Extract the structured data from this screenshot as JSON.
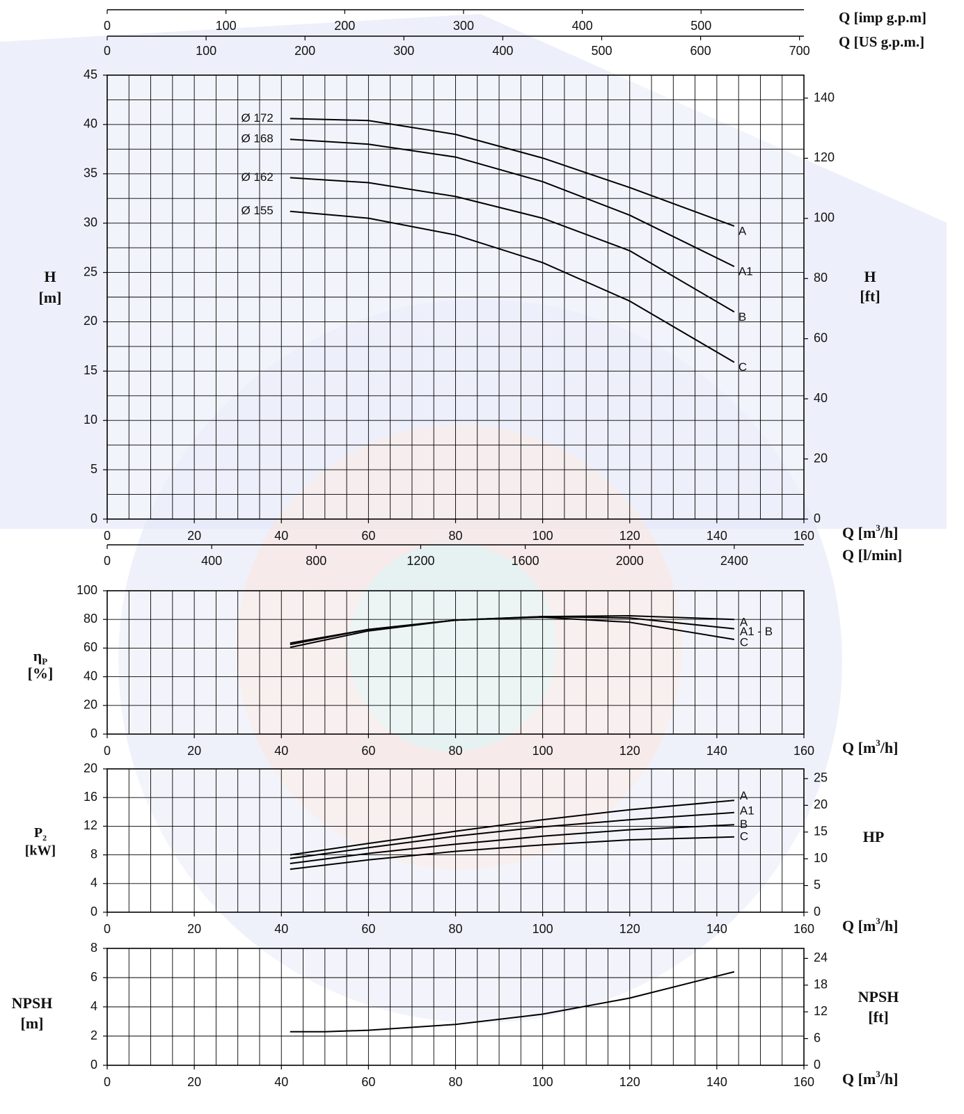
{
  "chart_data": [
    {
      "type": "line",
      "name": "head-chart",
      "top_axes": {
        "imp_label": "Q [imp g.p.m]",
        "imp_ticks": [
          "0",
          "100",
          "200",
          "300",
          "400",
          "500"
        ],
        "us_label": "Q [US g.p.m.]",
        "us_ticks": [
          "0",
          "100",
          "200",
          "300",
          "400",
          "500",
          "600",
          "700"
        ]
      },
      "x": {
        "label": "Q [m³/h]",
        "lim": [
          0,
          160
        ],
        "ticks": [
          "0",
          "20",
          "40",
          "60",
          "80",
          "100",
          "120",
          "140",
          "160"
        ]
      },
      "x2": {
        "label": "Q [l/min]",
        "ticks": [
          "0",
          "400",
          "800",
          "1200",
          "1600",
          "2000",
          "2400"
        ]
      },
      "y": {
        "label_line1": "H",
        "label_line2": "[m]",
        "lim": [
          0,
          45
        ],
        "ticks": [
          "0",
          "5",
          "10",
          "15",
          "20",
          "25",
          "30",
          "35",
          "40",
          "45"
        ]
      },
      "y2": {
        "label_line1": "H",
        "label_line2": "[ft]",
        "ticks": [
          "0",
          "20",
          "40",
          "60",
          "80",
          "100",
          "120",
          "140"
        ]
      },
      "grid": true,
      "series": [
        {
          "name": "A",
          "diameter_label": "Ø 172",
          "x": [
            42,
            60,
            80,
            100,
            120,
            144
          ],
          "y": [
            40.6,
            40.4,
            39.0,
            36.6,
            33.6,
            29.7
          ]
        },
        {
          "name": "A1",
          "diameter_label": "Ø 168",
          "x": [
            42,
            60,
            80,
            100,
            120,
            144
          ],
          "y": [
            38.5,
            38.0,
            36.7,
            34.2,
            30.8,
            25.6
          ]
        },
        {
          "name": "B",
          "diameter_label": "Ø 162",
          "x": [
            42,
            60,
            80,
            100,
            120,
            144
          ],
          "y": [
            34.6,
            34.1,
            32.7,
            30.5,
            27.2,
            21.0
          ]
        },
        {
          "name": "C",
          "diameter_label": "Ø 155",
          "x": [
            42,
            60,
            80,
            100,
            120,
            144
          ],
          "y": [
            31.2,
            30.5,
            28.8,
            26.0,
            22.1,
            15.9
          ]
        }
      ]
    },
    {
      "type": "line",
      "name": "efficiency-chart",
      "x": {
        "label": "Q [m³/h]",
        "lim": [
          0,
          160
        ],
        "ticks": [
          "0",
          "20",
          "40",
          "60",
          "80",
          "100",
          "120",
          "140",
          "160"
        ]
      },
      "y": {
        "label_symbol": "η",
        "label_sub": "P",
        "label_line2": "[%]",
        "lim": [
          0,
          100
        ],
        "ticks": [
          "0",
          "20",
          "40",
          "60",
          "80",
          "100"
        ]
      },
      "grid": true,
      "series": [
        {
          "name": "A",
          "x": [
            42,
            60,
            80,
            100,
            120,
            144
          ],
          "y": [
            63.5,
            73,
            79.5,
            82,
            82.5,
            80
          ]
        },
        {
          "name": "A1 - B",
          "x": [
            42,
            60,
            80,
            100,
            120,
            144
          ],
          "y": [
            62.5,
            73,
            79.5,
            82,
            81,
            73.5
          ]
        },
        {
          "name": "C",
          "x": [
            42,
            60,
            80,
            100,
            120,
            144
          ],
          "y": [
            60.5,
            72,
            79.5,
            81.5,
            78,
            66
          ]
        }
      ]
    },
    {
      "type": "line",
      "name": "power-chart",
      "x": {
        "label": "Q [m³/h]",
        "lim": [
          0,
          160
        ],
        "ticks": [
          "0",
          "20",
          "40",
          "60",
          "80",
          "100",
          "120",
          "140",
          "160"
        ]
      },
      "y": {
        "label_symbol": "P",
        "label_sub": "2",
        "label_line2": "[kW]",
        "lim": [
          0,
          20
        ],
        "ticks": [
          "0",
          "4",
          "8",
          "12",
          "16",
          "20"
        ]
      },
      "y2": {
        "label": "HP",
        "ticks": [
          "0",
          "5",
          "10",
          "15",
          "20",
          "25"
        ]
      },
      "grid": true,
      "series": [
        {
          "name": "A",
          "x": [
            42,
            60,
            80,
            100,
            120,
            144
          ],
          "y": [
            8.0,
            9.6,
            11.3,
            12.9,
            14.3,
            15.6
          ]
        },
        {
          "name": "A1",
          "x": [
            42,
            60,
            80,
            100,
            120,
            144
          ],
          "y": [
            7.5,
            9.0,
            10.6,
            11.9,
            12.9,
            13.9
          ]
        },
        {
          "name": "B",
          "x": [
            42,
            60,
            80,
            100,
            120,
            144
          ],
          "y": [
            6.8,
            8.2,
            9.5,
            10.6,
            11.5,
            12.2
          ]
        },
        {
          "name": "C",
          "x": [
            42,
            60,
            80,
            100,
            120,
            144
          ],
          "y": [
            6.0,
            7.3,
            8.5,
            9.4,
            10.1,
            10.5
          ]
        }
      ]
    },
    {
      "type": "line",
      "name": "npsh-chart",
      "x": {
        "label": "Q [m³/h]",
        "lim": [
          0,
          160
        ],
        "ticks": [
          "0",
          "20",
          "40",
          "60",
          "80",
          "100",
          "120",
          "140",
          "160"
        ]
      },
      "y": {
        "label_line1": "NPSH",
        "label_line2": "[m]",
        "lim": [
          0,
          8
        ],
        "ticks": [
          "0",
          "2",
          "4",
          "6",
          "8"
        ]
      },
      "y2": {
        "label_line1": "NPSH",
        "label_line2": "[ft]",
        "ticks": [
          "0",
          "6",
          "12",
          "18",
          "24"
        ]
      },
      "grid": true,
      "series": [
        {
          "name": "",
          "x": [
            42,
            50,
            60,
            80,
            100,
            120,
            144
          ],
          "y": [
            2.3,
            2.3,
            2.4,
            2.8,
            3.5,
            4.6,
            6.4
          ]
        }
      ]
    }
  ]
}
